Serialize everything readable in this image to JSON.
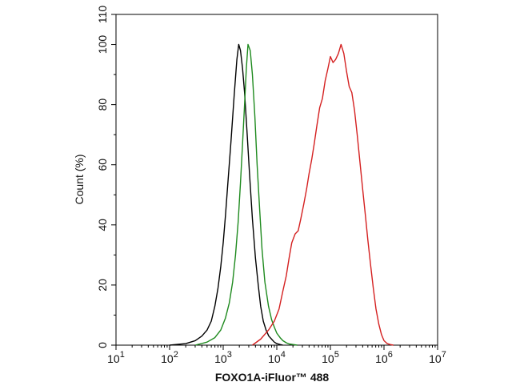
{
  "chart_data": {
    "type": "line",
    "title": "",
    "xlabel": "FOXO1A-iFluor™ 488",
    "ylabel": "Count  (%)",
    "x_scale": "log",
    "xlim": [
      10,
      10000000
    ],
    "ylim": [
      0,
      110
    ],
    "grid": false,
    "legend": "none",
    "x_ticks": [
      {
        "value": 10,
        "base": "10",
        "exp": "1"
      },
      {
        "value": 100,
        "base": "10",
        "exp": "2"
      },
      {
        "value": 1000,
        "base": "10",
        "exp": "3"
      },
      {
        "value": 10000,
        "base": "10",
        "exp": "4"
      },
      {
        "value": 100000,
        "base": "10",
        "exp": "5"
      },
      {
        "value": 1000000,
        "base": "10",
        "exp": "6"
      },
      {
        "value": 10000000,
        "base": "10",
        "exp": "7"
      }
    ],
    "y_ticks": [
      0,
      20,
      40,
      60,
      80,
      100,
      110
    ],
    "series": [
      {
        "color": "#000000",
        "x": [
          100,
          200,
          300,
          400,
          500,
          600,
          700,
          800,
          900,
          1000,
          1100,
          1200,
          1400,
          1600,
          1800,
          1950,
          2100,
          2300,
          2500,
          2800,
          3100,
          3500,
          4000,
          4500,
          5000,
          5600,
          6300,
          7100,
          8000,
          9000,
          10000,
          11500,
          13000
        ],
        "y": [
          0,
          0.5,
          1.5,
          3,
          5,
          8,
          13,
          19,
          26,
          34,
          43,
          52,
          68,
          83,
          95,
          100,
          98,
          92,
          84,
          70,
          57,
          42,
          29,
          20,
          13,
          8,
          5,
          3,
          2,
          1,
          0.5,
          0.2,
          0
        ]
      },
      {
        "color": "#1e8a1e",
        "x": [
          300,
          500,
          700,
          900,
          1100,
          1300,
          1500,
          1700,
          1900,
          2100,
          2300,
          2500,
          2700,
          2900,
          3200,
          3500,
          3900,
          4300,
          4800,
          5300,
          6000,
          7000,
          8000,
          9000,
          10000,
          11500,
          13000,
          15000,
          17000,
          20000,
          24000
        ],
        "y": [
          0,
          1,
          2.5,
          5,
          9,
          14,
          21,
          30,
          41,
          54,
          67,
          80,
          92,
          100,
          98,
          90,
          76,
          60,
          45,
          32,
          21,
          13,
          8.5,
          6,
          4,
          2.5,
          1.5,
          0.8,
          0.4,
          0.2,
          0
        ]
      },
      {
        "color": "#d42020",
        "x": [
          3500,
          5000,
          7000,
          9000,
          11000,
          13000,
          15000,
          17000,
          19000,
          22000,
          25000,
          28000,
          32000,
          36000,
          40000,
          45000,
          50000,
          56000,
          63000,
          71000,
          80000,
          90000,
          100000,
          112000,
          125000,
          141000,
          158000,
          178000,
          200000,
          224000,
          251000,
          282000,
          316000,
          355000,
          400000,
          450000,
          500000,
          560000,
          630000,
          710000,
          800000,
          900000,
          1000000,
          1150000,
          1300000,
          1500000
        ],
        "y": [
          0,
          2,
          5,
          8,
          12,
          18,
          23,
          29,
          34,
          37,
          38,
          42,
          47,
          52,
          57,
          62,
          67,
          73,
          79,
          82,
          88,
          92,
          96,
          94,
          95,
          97,
          100,
          97,
          91,
          86,
          84,
          78,
          70,
          61,
          52,
          43,
          35,
          27,
          19,
          12,
          7,
          3.5,
          1.5,
          0.5,
          0.2,
          0
        ]
      }
    ]
  }
}
